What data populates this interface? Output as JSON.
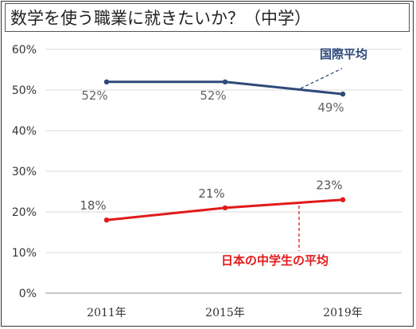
{
  "colors": {
    "international": "#2e4a7a",
    "japan": "#e11a1a",
    "grid": "#d9d9d9",
    "axis": "#8c8c8c"
  },
  "chart_data": {
    "type": "line",
    "title": "数学を使う職業に就きたいか？（中学）",
    "categories": [
      "2011年",
      "2015年",
      "2019年"
    ],
    "yticks": [
      "0%",
      "10%",
      "20%",
      "30%",
      "40%",
      "50%",
      "60%"
    ],
    "ylim": [
      0,
      60
    ],
    "grid": true,
    "series": [
      {
        "name": "国際平均",
        "values": [
          52,
          52,
          49
        ],
        "labels": [
          "52%",
          "52%",
          "49%"
        ],
        "color": "#2e4a7a"
      },
      {
        "name": "日本の中学生の平均",
        "values": [
          18,
          21,
          23
        ],
        "labels": [
          "18%",
          "21%",
          "23%"
        ],
        "color": "#e11a1a"
      }
    ]
  }
}
